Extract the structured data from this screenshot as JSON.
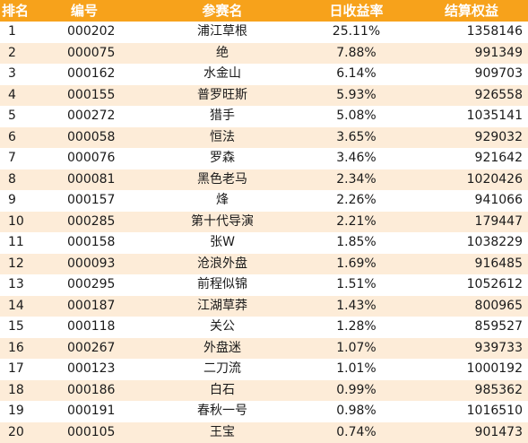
{
  "table": {
    "headers": {
      "rank": "排名",
      "code": "编号",
      "name": "参赛名",
      "daily_return": "日收益率",
      "settlement_equity": "结算权益"
    },
    "rows": [
      {
        "rank": "1",
        "code": "000202",
        "name": "浦江草根",
        "daily_return": "25.11%",
        "settlement_equity": "1358146"
      },
      {
        "rank": "2",
        "code": "000075",
        "name": "绝",
        "daily_return": "7.88%",
        "settlement_equity": "991349"
      },
      {
        "rank": "3",
        "code": "000162",
        "name": "水金山",
        "daily_return": "6.14%",
        "settlement_equity": "909703"
      },
      {
        "rank": "4",
        "code": "000155",
        "name": "普罗旺斯",
        "daily_return": "5.93%",
        "settlement_equity": "926558"
      },
      {
        "rank": "5",
        "code": "000272",
        "name": "猎手",
        "daily_return": "5.08%",
        "settlement_equity": "1035141"
      },
      {
        "rank": "6",
        "code": "000058",
        "name": "恒法",
        "daily_return": "3.65%",
        "settlement_equity": "929032"
      },
      {
        "rank": "7",
        "code": "000076",
        "name": "罗森",
        "daily_return": "3.46%",
        "settlement_equity": "921642"
      },
      {
        "rank": "8",
        "code": "000081",
        "name": "黑色老马",
        "daily_return": "2.34%",
        "settlement_equity": "1020426"
      },
      {
        "rank": "9",
        "code": "000157",
        "name": "烽",
        "daily_return": "2.26%",
        "settlement_equity": "941066"
      },
      {
        "rank": "10",
        "code": "000285",
        "name": "第十代导演",
        "daily_return": "2.21%",
        "settlement_equity": "179447"
      },
      {
        "rank": "11",
        "code": "000158",
        "name": "张W",
        "daily_return": "1.85%",
        "settlement_equity": "1038229"
      },
      {
        "rank": "12",
        "code": "000093",
        "name": "沧浪外盘",
        "daily_return": "1.69%",
        "settlement_equity": "916485"
      },
      {
        "rank": "13",
        "code": "000295",
        "name": "前程似锦",
        "daily_return": "1.51%",
        "settlement_equity": "1052612"
      },
      {
        "rank": "14",
        "code": "000187",
        "name": "江湖草莽",
        "daily_return": "1.43%",
        "settlement_equity": "800965"
      },
      {
        "rank": "15",
        "code": "000118",
        "name": "关公",
        "daily_return": "1.28%",
        "settlement_equity": "859527"
      },
      {
        "rank": "16",
        "code": "000267",
        "name": "外盘迷",
        "daily_return": "1.07%",
        "settlement_equity": "939733"
      },
      {
        "rank": "17",
        "code": "000123",
        "name": "二刀流",
        "daily_return": "1.01%",
        "settlement_equity": "1000192"
      },
      {
        "rank": "18",
        "code": "000186",
        "name": "白石",
        "daily_return": "0.99%",
        "settlement_equity": "985362"
      },
      {
        "rank": "19",
        "code": "000191",
        "name": "春秋一号",
        "daily_return": "0.98%",
        "settlement_equity": "1016510"
      },
      {
        "rank": "20",
        "code": "000105",
        "name": "王宝",
        "daily_return": "0.74%",
        "settlement_equity": "901473"
      }
    ]
  },
  "colors": {
    "header_bg": "#f7a21b",
    "header_text": "#ffffff",
    "stripe_bg": "#fdecd8",
    "row_bg": "#ffffff",
    "text": "#1a1a1a"
  }
}
